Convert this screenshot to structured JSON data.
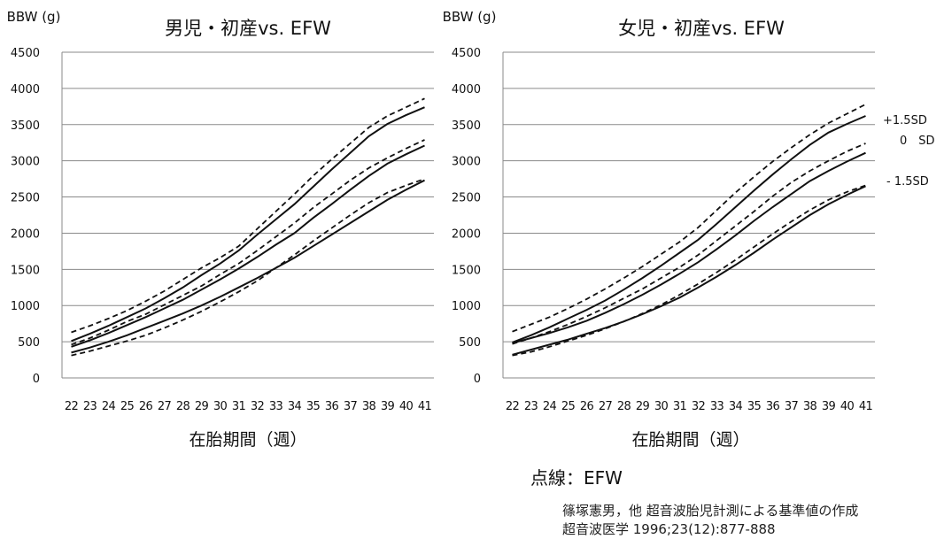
{
  "chart_data": [
    {
      "type": "line",
      "title": "男児・初産vs. EFW",
      "ylabel": "BBW (g)",
      "xlabel": "在胎期間（週）",
      "ylim": [
        0,
        4500
      ],
      "yticks": [
        0,
        500,
        1000,
        1500,
        2000,
        2500,
        3000,
        3500,
        4000,
        4500
      ],
      "x": [
        22,
        23,
        24,
        25,
        26,
        27,
        28,
        29,
        30,
        31,
        32,
        33,
        34,
        35,
        36,
        37,
        38,
        39,
        40,
        41
      ],
      "grid": "horizontal",
      "series": [
        {
          "style": "dashed",
          "values": [
            630,
            720,
            820,
            930,
            1060,
            1200,
            1360,
            1520,
            1660,
            1820,
            2060,
            2300,
            2540,
            2790,
            3020,
            3240,
            3460,
            3620,
            3740,
            3860
          ]
        },
        {
          "style": "solid",
          "values": [
            510,
            610,
            720,
            840,
            960,
            1100,
            1250,
            1420,
            1580,
            1760,
            1980,
            2190,
            2400,
            2640,
            2880,
            3110,
            3340,
            3510,
            3630,
            3740
          ]
        },
        {
          "style": "dashed",
          "values": [
            460,
            550,
            660,
            780,
            880,
            1010,
            1140,
            1270,
            1430,
            1580,
            1760,
            1950,
            2140,
            2350,
            2540,
            2730,
            2900,
            3040,
            3170,
            3290
          ]
        },
        {
          "style": "solid",
          "values": [
            430,
            520,
            620,
            730,
            840,
            960,
            1080,
            1220,
            1360,
            1510,
            1670,
            1840,
            2000,
            2210,
            2400,
            2600,
            2790,
            2960,
            3090,
            3210
          ]
        },
        {
          "style": "dashed",
          "values": [
            310,
            370,
            440,
            510,
            590,
            690,
            800,
            920,
            1050,
            1190,
            1340,
            1520,
            1700,
            1890,
            2070,
            2250,
            2420,
            2560,
            2660,
            2750
          ]
        },
        {
          "style": "solid",
          "values": [
            350,
            420,
            500,
            590,
            690,
            790,
            890,
            1000,
            1120,
            1250,
            1380,
            1520,
            1660,
            1820,
            1980,
            2140,
            2300,
            2460,
            2600,
            2730
          ]
        }
      ]
    },
    {
      "type": "line",
      "title": "女児・初産vs. EFW",
      "ylabel": "BBW (g)",
      "xlabel": "在胎期間（週）",
      "ylim": [
        0,
        4500
      ],
      "yticks": [
        0,
        500,
        1000,
        1500,
        2000,
        2500,
        3000,
        3500,
        4000,
        4500
      ],
      "x": [
        22,
        23,
        24,
        25,
        26,
        27,
        28,
        29,
        30,
        31,
        32,
        33,
        34,
        35,
        36,
        37,
        38,
        39,
        40,
        41
      ],
      "grid": "horizontal",
      "annotations": [
        "+1.5SD",
        "0　SD",
        "- 1.5SD"
      ],
      "series": [
        {
          "style": "dashed",
          "values": [
            640,
            740,
            840,
            960,
            1090,
            1230,
            1380,
            1540,
            1710,
            1880,
            2080,
            2320,
            2560,
            2780,
            2990,
            3180,
            3360,
            3520,
            3650,
            3780
          ]
        },
        {
          "style": "solid",
          "values": [
            490,
            590,
            700,
            820,
            940,
            1070,
            1220,
            1380,
            1550,
            1730,
            1910,
            2130,
            2360,
            2590,
            2810,
            3020,
            3220,
            3390,
            3510,
            3620
          ]
        },
        {
          "style": "dashed",
          "values": [
            470,
            550,
            640,
            740,
            850,
            970,
            1100,
            1230,
            1380,
            1530,
            1700,
            1900,
            2100,
            2300,
            2510,
            2700,
            2860,
            3000,
            3130,
            3240
          ]
        },
        {
          "style": "solid",
          "values": [
            480,
            550,
            620,
            700,
            790,
            900,
            1020,
            1150,
            1290,
            1440,
            1600,
            1780,
            1970,
            2170,
            2360,
            2540,
            2720,
            2860,
            2990,
            3110
          ]
        },
        {
          "style": "dashed",
          "values": [
            310,
            360,
            430,
            510,
            590,
            680,
            780,
            890,
            1010,
            1150,
            1300,
            1460,
            1630,
            1810,
            1990,
            2160,
            2320,
            2460,
            2570,
            2660
          ]
        },
        {
          "style": "solid",
          "values": [
            320,
            390,
            460,
            530,
            610,
            690,
            780,
            880,
            990,
            1110,
            1250,
            1400,
            1560,
            1730,
            1910,
            2080,
            2250,
            2400,
            2530,
            2650
          ]
        }
      ]
    }
  ],
  "notes": {
    "legend": "点線：EFW",
    "ref1": "篠塚憲男，他 超音波胎児計測による基準値の作成",
    "ref2": "超音波医学 1996;23(12):877-888"
  }
}
